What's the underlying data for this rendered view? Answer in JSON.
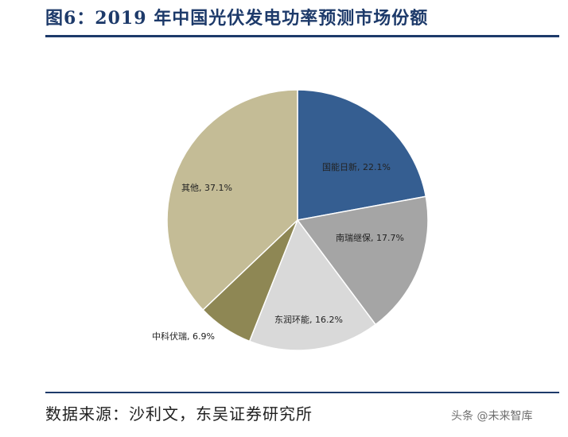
{
  "header": {
    "title": "图6：2019 年中国光伏发电功率预测市场份额"
  },
  "footer": {
    "source": "数据来源：沙利文，东吴证券研究所"
  },
  "watermark": {
    "text": "头条 @未来智库"
  },
  "chart_data": {
    "type": "pie",
    "title": "图6：2019 年中国光伏发电功率预测市场份额",
    "slices": [
      {
        "name": "国能日新",
        "value": 22.1,
        "label": "国能日新, 22.1%",
        "color": "#355e91"
      },
      {
        "name": "南瑞继保",
        "value": 17.7,
        "label": "南瑞继保, 17.7%",
        "color": "#a5a5a5"
      },
      {
        "name": "东润环能",
        "value": 16.2,
        "label": "东润环能, 16.2%",
        "color": "#d9d9d9"
      },
      {
        "name": "中科伏瑞",
        "value": 6.9,
        "label": "中科伏瑞, 6.9%",
        "color": "#8e8754"
      },
      {
        "name": "其他",
        "value": 37.1,
        "label": "其他, 37.1%",
        "color": "#c4bc96"
      }
    ]
  }
}
